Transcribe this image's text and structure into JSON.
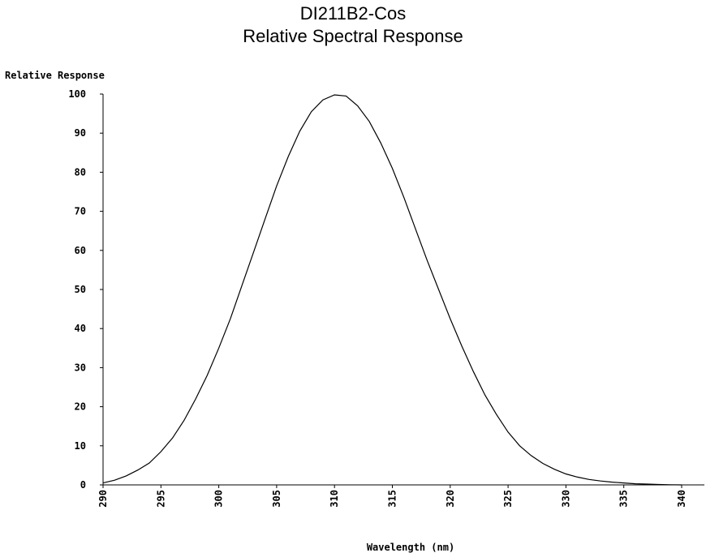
{
  "chart_data": {
    "type": "line",
    "title": "DI211B2-Cos",
    "subtitle": "Relative Spectral Response",
    "xlabel": "Wavelength (nm)",
    "ylabel": "Relative Response",
    "xlim": [
      290,
      340
    ],
    "ylim": [
      0,
      100
    ],
    "xticks": [
      "290",
      "295",
      "300",
      "305",
      "310",
      "315",
      "320",
      "325",
      "330",
      "335",
      "340"
    ],
    "yticks": [
      "0",
      "10",
      "20",
      "30",
      "40",
      "50",
      "60",
      "70",
      "80",
      "90",
      "100"
    ],
    "series": [
      {
        "x": [
          290,
          291,
          292,
          293,
          294,
          295,
          296,
          297,
          298,
          299,
          300,
          301,
          302,
          303,
          304,
          305,
          306,
          307,
          308,
          309,
          310,
          311,
          312,
          313,
          314,
          315,
          316,
          317,
          318,
          319,
          320,
          321,
          322,
          323,
          324,
          325,
          326,
          327,
          328,
          329,
          330,
          331,
          332,
          333,
          334,
          335,
          336,
          337,
          338,
          339,
          340
        ],
        "y": [
          0.5,
          1.2,
          2.3,
          3.8,
          5.6,
          8.5,
          12,
          16.5,
          22,
          28,
          35,
          42.5,
          51,
          59.5,
          68,
          76.5,
          84,
          90.5,
          95.5,
          98.5,
          99.8,
          99.5,
          97,
          93,
          87.5,
          81,
          73.5,
          65.5,
          57.5,
          50,
          42.5,
          35.5,
          29,
          23,
          18,
          13.5,
          10,
          7.5,
          5.5,
          4,
          2.8,
          2,
          1.4,
          1,
          0.7,
          0.5,
          0.3,
          0.2,
          0.1,
          0.05,
          0
        ]
      }
    ],
    "grid": false,
    "legend": "none"
  }
}
